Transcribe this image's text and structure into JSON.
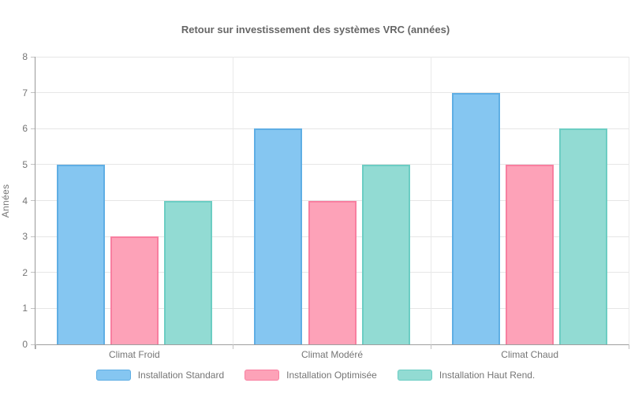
{
  "chart_data": {
    "type": "bar",
    "title": "Retour sur investissement des systèmes VRC (années)",
    "ylabel": "Années",
    "xlabel": "",
    "categories": [
      "Climat Froid",
      "Climat Modéré",
      "Climat Chaud"
    ],
    "series": [
      {
        "name": "Installation Standard",
        "fill": "#85C6F1",
        "border": "#5FAEE4",
        "values": [
          5,
          6,
          7
        ]
      },
      {
        "name": "Installation Optimisée",
        "fill": "#FDA2B8",
        "border": "#F87FA0",
        "values": [
          3,
          4,
          5
        ]
      },
      {
        "name": "Installation Haut Rend.",
        "fill": "#92DBD3",
        "border": "#6CCDC3",
        "values": [
          4,
          5,
          6
        ]
      }
    ],
    "ylim": [
      0,
      8
    ],
    "ytick_step": 1,
    "grid": true,
    "legend_position": "bottom"
  },
  "colors": {
    "title_text": "#666666",
    "tick_text": "#757575",
    "axis_line": "#999999",
    "gridline": "#e6e6e6"
  }
}
